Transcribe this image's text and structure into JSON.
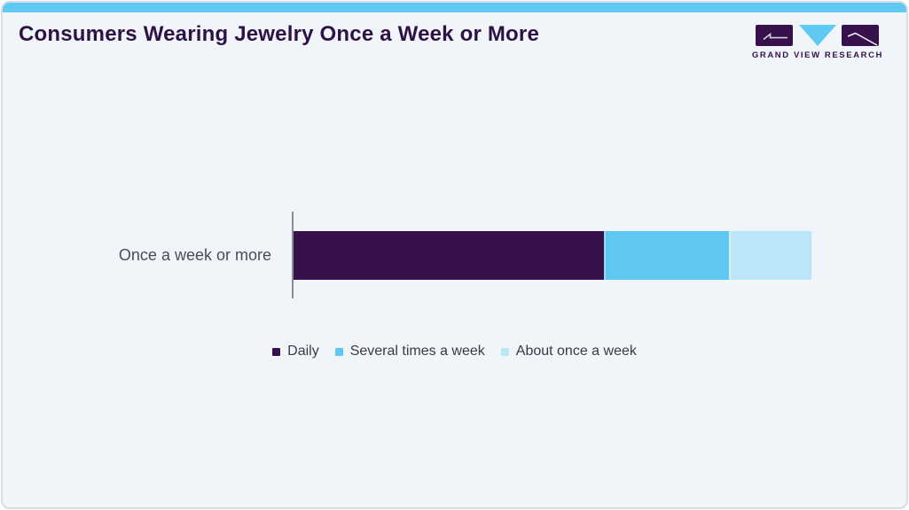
{
  "header": {
    "title": "Consumers Wearing Jewelry Once a Week or More",
    "logo": {
      "brand": "GRAND VIEW RESEARCH",
      "icon": "gvr-logo-icon"
    }
  },
  "chart_data": {
    "type": "bar",
    "orientation": "horizontal",
    "stacked": true,
    "title": "Consumers Wearing Jewelry Once a Week or More",
    "categories": [
      "Once a week or more"
    ],
    "series": [
      {
        "name": "Daily",
        "values": [
          60
        ],
        "color": "#36114b"
      },
      {
        "name": "Several times a week",
        "values": [
          24
        ],
        "color": "#5ec8f2"
      },
      {
        "name": "About once a week",
        "values": [
          16
        ],
        "color": "#bae7f8"
      }
    ],
    "total": 100,
    "xlabel": "",
    "ylabel": "",
    "grid": false,
    "legend_position": "bottom"
  },
  "colors": {
    "accent_strip": "#5fc9f2",
    "card_background": "#f0f5fa",
    "card_border": "#d9dde2",
    "title_text": "#2f1245",
    "axis_line": "#8c8c94",
    "category_label_text": "#4c4b58",
    "legend_text": "#3b3a45",
    "logo_purple": "#36114b",
    "logo_blue": "#5fc9f2"
  }
}
